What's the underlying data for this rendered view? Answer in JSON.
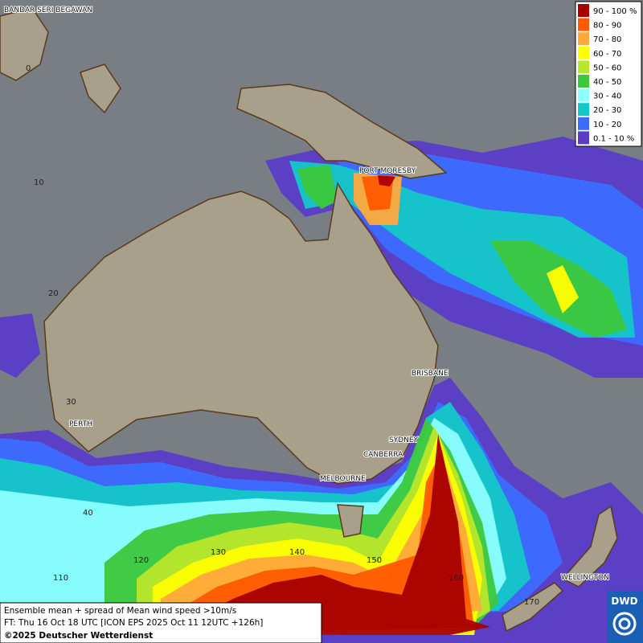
{
  "legend": {
    "items": [
      {
        "label": "90 - 100 %",
        "color": "#a80000"
      },
      {
        "label": "80 - 90",
        "color": "#ff5a00"
      },
      {
        "label": "70 - 80",
        "color": "#ffa83c"
      },
      {
        "label": "60 - 70",
        "color": "#ffff00"
      },
      {
        "label": "50 - 60",
        "color": "#b8e62a"
      },
      {
        "label": "40 - 50",
        "color": "#3cc83c"
      },
      {
        "label": "30 - 40",
        "color": "#8cffff"
      },
      {
        "label": "20 - 30",
        "color": "#14c8c8"
      },
      {
        "label": "10 - 20",
        "color": "#3c6cff"
      },
      {
        "label": "0.1 - 10 %",
        "color": "#5a3cc8"
      }
    ]
  },
  "places": [
    "BANDAR SERI BEGAWAN",
    "PORT MORESBY",
    "BRISBANE",
    "PERTH",
    "SYDNEY",
    "CANBERRA",
    "MELBOURNE",
    "WELLINGTON"
  ],
  "graticule_labels": [
    "0",
    "10",
    "20",
    "30",
    "40",
    "110",
    "120",
    "130",
    "140",
    "150",
    "160",
    "170"
  ],
  "caption": {
    "line1": "Ensemble mean + spread of Mean wind speed >10m/s",
    "line2": "FT: Thu 16 Oct 18 UTC [ICON EPS 2025 Oct 11 12UTC +126h]",
    "line3": "©2025 Deutscher Wetterdienst"
  },
  "logo": "DWD"
}
